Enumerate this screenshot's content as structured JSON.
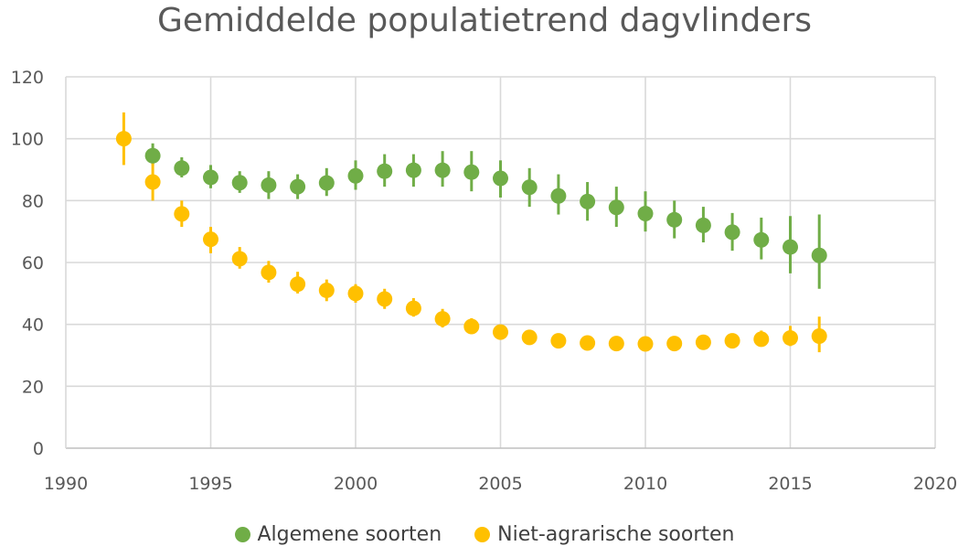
{
  "chart_data": {
    "type": "scatter",
    "title": "Gemiddelde populatietrend dagvlinders",
    "xlabel": "",
    "ylabel": "",
    "xlim": [
      1990,
      2020
    ],
    "ylim": [
      0,
      120
    ],
    "xticks": [
      1990,
      1995,
      2000,
      2005,
      2010,
      2015,
      2020
    ],
    "yticks": [
      0,
      20,
      40,
      60,
      80,
      100,
      120
    ],
    "grid": true,
    "legend_position": "bottom",
    "series": [
      {
        "name": "Algemene soorten",
        "color": "#70AD47",
        "x": [
          1993,
          1994,
          1995,
          1996,
          1997,
          1998,
          1999,
          2000,
          2001,
          2002,
          2003,
          2004,
          2005,
          2006,
          2007,
          2008,
          2009,
          2010,
          2011,
          2012,
          2013,
          2014,
          2015,
          2016
        ],
        "y": [
          94.5,
          90.5,
          87.5,
          85.8,
          85,
          84.5,
          85.7,
          88,
          89.5,
          89.8,
          89.8,
          89.2,
          87.2,
          84.3,
          81.5,
          79.7,
          77.8,
          75.8,
          73.8,
          72,
          69.8,
          67.3,
          65,
          62.3
        ],
        "err_low": [
          91.5,
          87.5,
          84,
          82.5,
          80.5,
          80.5,
          81.5,
          83.5,
          84.5,
          84.5,
          84.5,
          83,
          81,
          78,
          75.5,
          73.5,
          71.5,
          70,
          67.8,
          66.5,
          63.8,
          61,
          56.5,
          51.5
        ],
        "err_high": [
          98.5,
          94,
          91.5,
          89.5,
          89.5,
          88.5,
          90.5,
          93,
          95,
          95,
          96,
          96,
          93,
          90.5,
          88.5,
          86,
          84.5,
          83,
          80,
          78,
          76,
          74.5,
          75,
          75.5
        ]
      },
      {
        "name": "Niet-agrarische soorten",
        "color": "#FFC000",
        "x": [
          1992,
          1993,
          1994,
          1995,
          1996,
          1997,
          1998,
          1999,
          2000,
          2001,
          2002,
          2003,
          2004,
          2005,
          2006,
          2007,
          2008,
          2009,
          2010,
          2011,
          2012,
          2013,
          2014,
          2015,
          2016
        ],
        "y": [
          100,
          86,
          75.7,
          67.5,
          61.2,
          56.8,
          53,
          51,
          50,
          48.2,
          45.2,
          41.8,
          39.3,
          37.5,
          35.8,
          34.7,
          34,
          33.8,
          33.7,
          33.8,
          34.2,
          34.7,
          35.2,
          35.6,
          36.2
        ],
        "err_low": [
          91.5,
          80,
          71.5,
          63,
          58,
          53.5,
          50,
          47.5,
          47,
          45,
          42.5,
          39,
          37,
          35.5,
          34,
          33,
          32.5,
          32.5,
          32,
          32.5,
          32.8,
          33,
          33,
          33,
          31
        ],
        "err_high": [
          108.5,
          92,
          80,
          71.5,
          65,
          60.5,
          57,
          54.5,
          53,
          51.5,
          48.5,
          45,
          42,
          39.5,
          37.5,
          36.5,
          35.5,
          35.5,
          35.5,
          35.5,
          35.8,
          36.5,
          38,
          39.5,
          42.5
        ]
      }
    ]
  }
}
